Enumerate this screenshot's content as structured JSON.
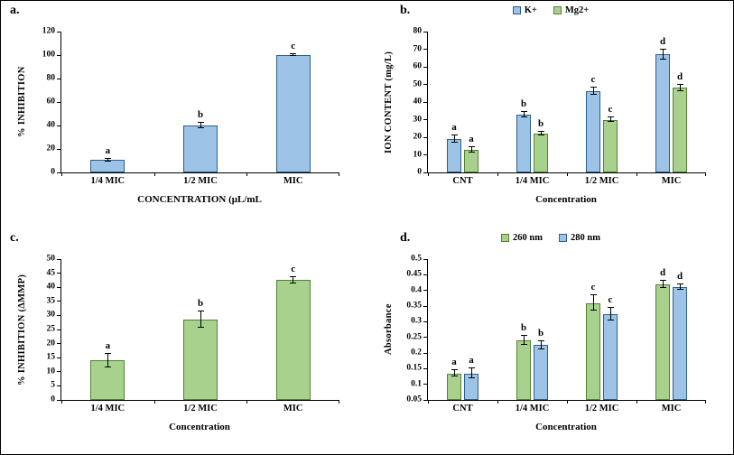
{
  "colors": {
    "blue_fill": "#9dc3e6",
    "blue_border": "#2e5f8a",
    "green_fill": "#a9d18e",
    "green_border": "#538135",
    "axis": "#000000",
    "background": "#ffffff"
  },
  "chart_data": [
    {
      "panel_label": "a.",
      "type": "bar",
      "title": "",
      "categories": [
        "1/4 MIC",
        "1/2 MIC",
        "MIC"
      ],
      "series": [
        {
          "name": "",
          "fill": "#9dc3e6",
          "border": "#2e5f8a",
          "values": [
            10.5,
            40,
            100
          ],
          "errors": [
            1.2,
            2,
            1
          ],
          "letters": [
            "a",
            "b",
            "c"
          ]
        }
      ],
      "xlabel": "CONCENTRATION (μL/mL",
      "ylabel": "% INHIBITION",
      "ymin": 0,
      "ymax": 120,
      "yticks": [
        "0",
        "20",
        "40",
        "60",
        "80",
        "100",
        "120"
      ],
      "grid": false,
      "legend_position": "none"
    },
    {
      "panel_label": "b.",
      "type": "bar",
      "title": "",
      "categories": [
        "CNT",
        "1/4 MIC",
        "1/2 MIC",
        "MIC"
      ],
      "series": [
        {
          "name": "K+",
          "fill": "#9dc3e6",
          "border": "#2e5f8a",
          "values": [
            19,
            33,
            46,
            67
          ],
          "errors": [
            2,
            1.5,
            2,
            3
          ],
          "letters": [
            "a",
            "b",
            "c",
            "d"
          ]
        },
        {
          "name": "Mg2+",
          "fill": "#a9d18e",
          "border": "#538135",
          "values": [
            13,
            22,
            30,
            48
          ],
          "errors": [
            1.5,
            1,
            1.5,
            2
          ],
          "letters": [
            "a",
            "b",
            "c",
            "d"
          ]
        }
      ],
      "xlabel": "Concentration",
      "ylabel": "ION CONTENT (mg/L)",
      "ymin": 0,
      "ymax": 80,
      "yticks": [
        "0",
        "10",
        "20",
        "30",
        "40",
        "50",
        "60",
        "70",
        "80"
      ],
      "grid": false,
      "legend_position": "top"
    },
    {
      "panel_label": "c.",
      "type": "bar",
      "title": "",
      "categories": [
        "1/4 MIC",
        "1/2 MIC",
        "MIC"
      ],
      "series": [
        {
          "name": "",
          "fill": "#a9d18e",
          "border": "#538135",
          "values": [
            14,
            28.5,
            42.5
          ],
          "errors": [
            2.5,
            3,
            1
          ],
          "letters": [
            "a",
            "b",
            "c"
          ]
        }
      ],
      "xlabel": "Concentration",
      "ylabel": "% INHIBITION (ΔMMP)",
      "ymin": 0,
      "ymax": 50,
      "yticks": [
        "0",
        "5",
        "10",
        "15",
        "20",
        "25",
        "30",
        "35",
        "40",
        "45",
        "50"
      ],
      "grid": false,
      "legend_position": "none"
    },
    {
      "panel_label": "d.",
      "type": "bar",
      "title": "",
      "categories": [
        "CNT",
        "1/4 MIC",
        "1/2 MIC",
        "MIC"
      ],
      "series": [
        {
          "name": "260 nm",
          "fill": "#a9d18e",
          "border": "#538135",
          "values": [
            0.135,
            0.24,
            0.36,
            0.42
          ],
          "errors": [
            0.01,
            0.015,
            0.025,
            0.012
          ],
          "letters": [
            "a",
            "b",
            "c",
            "d"
          ]
        },
        {
          "name": "280 nm",
          "fill": "#9dc3e6",
          "border": "#2e5f8a",
          "values": [
            0.135,
            0.225,
            0.325,
            0.41
          ],
          "errors": [
            0.015,
            0.012,
            0.02,
            0.008
          ],
          "letters": [
            "a",
            "b",
            "c",
            "d"
          ]
        }
      ],
      "xlabel": "Concentration",
      "ylabel": "Absorbance",
      "ymin": 0.05,
      "ymax": 0.5,
      "yticks": [
        "0.05",
        "0.1",
        "0.15",
        "0.2",
        "0.25",
        "0.3",
        "0.35",
        "0.4",
        "0.45",
        "0.5"
      ],
      "grid": false,
      "legend_position": "top"
    }
  ]
}
